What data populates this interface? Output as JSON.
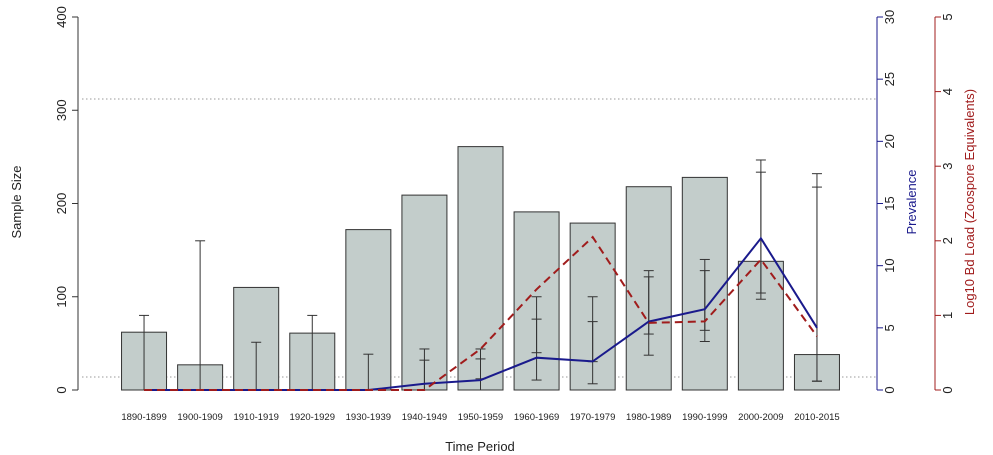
{
  "chart_data": {
    "type": "bar",
    "xlabel": "Time Period",
    "categories": [
      "1890-1899",
      "1900-1909",
      "1910-1919",
      "1920-1929",
      "1930-1939",
      "1940-1949",
      "1950-1959",
      "1960-1969",
      "1970-1979",
      "1980-1989",
      "1990-1999",
      "2000-2009",
      "2010-2015"
    ],
    "grid": false,
    "reference_lines": [
      {
        "axis": "left",
        "value": 312,
        "style": "dotted"
      },
      {
        "axis": "left",
        "value": 14,
        "style": "dotted"
      }
    ],
    "axes": {
      "left": {
        "label": "Sample Size",
        "ylim": [
          0,
          400
        ],
        "ticks": [
          0,
          100,
          200,
          300,
          400
        ]
      },
      "right1": {
        "label": "Prevalence",
        "ylim": [
          0,
          30
        ],
        "ticks": [
          0,
          5,
          10,
          15,
          20,
          25,
          30
        ],
        "color": "#1a1a8c"
      },
      "right2": {
        "label": "Log10 Bd Load (Zoospore Equivalents)",
        "ylim": [
          0,
          5
        ],
        "ticks": [
          0,
          1,
          2,
          3,
          4,
          5
        ],
        "color": "#a01c1c"
      }
    },
    "series": [
      {
        "type": "bar",
        "axis": "left",
        "color": "#c3cdcb",
        "values": [
          62,
          27,
          110,
          61,
          172,
          209,
          261,
          191,
          179,
          218,
          228,
          138,
          38
        ]
      },
      {
        "type": "line",
        "name": "Prevalence",
        "axis": "right1",
        "style": "solid",
        "color": "#1a1a8c",
        "values": [
          0,
          0,
          0,
          0,
          0,
          0.5,
          0.8,
          2.6,
          2.3,
          5.5,
          6.5,
          12.2,
          5.0
        ],
        "error_low": [
          0,
          0,
          0,
          0,
          0,
          0,
          0,
          0.8,
          0.5,
          2.8,
          3.9,
          7.3,
          0.7
        ],
        "error_high": [
          0,
          0,
          0,
          0,
          0,
          2.4,
          2.5,
          5.7,
          5.5,
          9.1,
          10.5,
          18.5,
          17.4
        ]
      },
      {
        "type": "line",
        "axis": "right2",
        "style": "dashed",
        "color": "#a01c1c",
        "values": [
          0,
          0,
          0,
          0,
          0,
          0,
          0.55,
          1.35,
          2.05,
          0.9,
          0.92,
          1.75,
          0.72
        ],
        "error_low": [
          0,
          0,
          0,
          0,
          0,
          0,
          0.15,
          0.5,
          0.38,
          0.75,
          0.8,
          1.3,
          0.12
        ],
        "error_high": [
          1.0,
          2.0,
          0.64,
          1.0,
          0.48,
          0.55,
          0.55,
          1.25,
          1.25,
          1.6,
          1.6,
          2.92,
          2.72
        ]
      }
    ]
  },
  "colors": {
    "bar_fill": "#c3cdcb",
    "bar_stroke": "#333333",
    "prevalence": "#1a1a8c",
    "bd_load": "#a01c1c",
    "ref_line": "#9a9a9a"
  }
}
